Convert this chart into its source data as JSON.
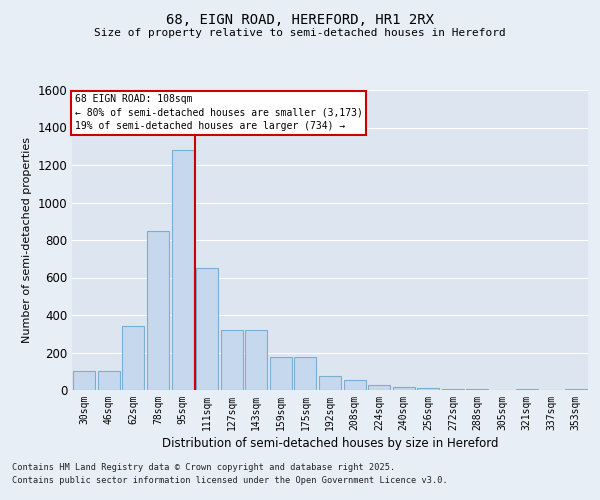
{
  "title1": "68, EIGN ROAD, HEREFORD, HR1 2RX",
  "title2": "Size of property relative to semi-detached houses in Hereford",
  "xlabel": "Distribution of semi-detached houses by size in Hereford",
  "ylabel": "Number of semi-detached properties",
  "categories": [
    "30sqm",
    "46sqm",
    "62sqm",
    "78sqm",
    "95sqm",
    "111sqm",
    "127sqm",
    "143sqm",
    "159sqm",
    "175sqm",
    "192sqm",
    "208sqm",
    "224sqm",
    "240sqm",
    "256sqm",
    "272sqm",
    "288sqm",
    "305sqm",
    "321sqm",
    "337sqm",
    "353sqm"
  ],
  "values": [
    100,
    100,
    340,
    850,
    1280,
    650,
    320,
    320,
    175,
    175,
    75,
    55,
    25,
    15,
    10,
    5,
    5,
    0,
    5,
    0,
    5
  ],
  "bar_color": "#c5d8ed",
  "bar_edge_color": "#7aafd4",
  "vline_x_index": 5,
  "vline_color": "#cc0000",
  "annotation_title": "68 EIGN ROAD: 108sqm",
  "annotation_line1": "← 80% of semi-detached houses are smaller (3,173)",
  "annotation_line2": "19% of semi-detached houses are larger (734) →",
  "annotation_box_edge_color": "#cc0000",
  "ylim": [
    0,
    1600
  ],
  "yticks": [
    0,
    200,
    400,
    600,
    800,
    1000,
    1200,
    1400,
    1600
  ],
  "bg_color": "#dde6f0",
  "grid_color": "#ffffff",
  "fig_bg_color": "#e8eef5",
  "footer1": "Contains HM Land Registry data © Crown copyright and database right 2025.",
  "footer2": "Contains public sector information licensed under the Open Government Licence v3.0."
}
